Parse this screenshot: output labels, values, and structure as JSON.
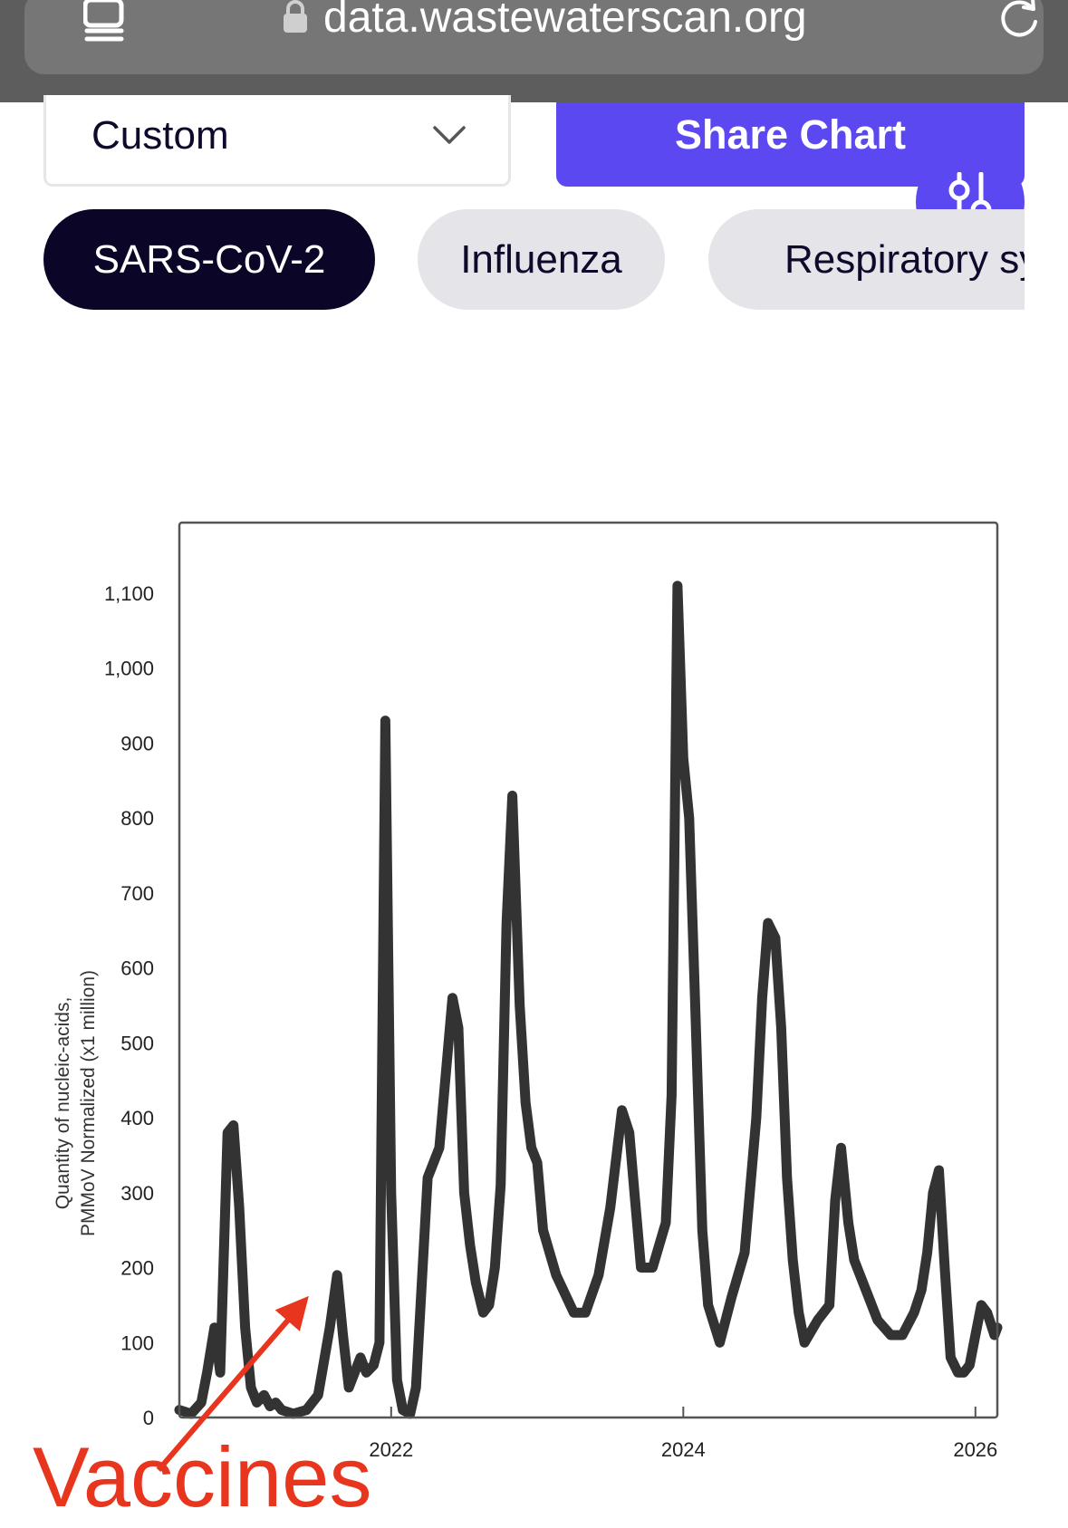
{
  "browser": {
    "url": "data.wastewaterscan.org"
  },
  "controls": {
    "range_value": "Custom",
    "share_label": "Share Chart"
  },
  "pathogen_tabs": [
    {
      "label": "SARS-CoV-2",
      "active": true
    },
    {
      "label": "Influenza",
      "active": false
    },
    {
      "label": "Respiratory sy",
      "active": false
    }
  ],
  "colors": {
    "accent": "#5c48f0",
    "active_chip": "#0b0627",
    "chip": "#e4e4e9",
    "line": "#333333",
    "annotation": "#e8351e"
  },
  "chart_data": {
    "type": "line",
    "ylabel_line1": "Quantity of nucleic-acids,",
    "ylabel_line2": "PMMoV Normalized (x1 million)",
    "ylim": [
      0,
      1200
    ],
    "xlim": [
      2020.55,
      2026.15
    ],
    "y_ticks": [
      {
        "v": 0,
        "label": "0"
      },
      {
        "v": 100,
        "label": "100"
      },
      {
        "v": 200,
        "label": "200"
      },
      {
        "v": 300,
        "label": "300"
      },
      {
        "v": 400,
        "label": "400"
      },
      {
        "v": 500,
        "label": "500"
      },
      {
        "v": 600,
        "label": "600"
      },
      {
        "v": 700,
        "label": "700"
      },
      {
        "v": 800,
        "label": "800"
      },
      {
        "v": 900,
        "label": "900"
      },
      {
        "v": 1000,
        "label": "1,000"
      },
      {
        "v": 1100,
        "label": "1,100"
      }
    ],
    "x_ticks": [
      {
        "v": 2022,
        "label": "2022"
      },
      {
        "v": 2024,
        "label": "2024"
      },
      {
        "v": 2026,
        "label": "2026"
      }
    ],
    "grid": false,
    "series": [
      {
        "x": [
          2020.55,
          2020.63,
          2020.7,
          2020.74,
          2020.79,
          2020.83,
          2020.88,
          2020.92,
          2020.96,
          2021.0,
          2021.04,
          2021.08,
          2021.13,
          2021.17,
          2021.21,
          2021.25,
          2021.33,
          2021.42,
          2021.5,
          2021.58,
          2021.63,
          2021.67,
          2021.71,
          2021.75,
          2021.79,
          2021.83,
          2021.88,
          2021.92,
          2021.96,
          2022.0,
          2022.04,
          2022.08,
          2022.13,
          2022.17,
          2022.25,
          2022.33,
          2022.42,
          2022.46,
          2022.5,
          2022.54,
          2022.58,
          2022.63,
          2022.67,
          2022.71,
          2022.75,
          2022.79,
          2022.83,
          2022.88,
          2022.92,
          2022.96,
          2023.0,
          2023.04,
          2023.13,
          2023.25,
          2023.33,
          2023.42,
          2023.5,
          2023.58,
          2023.63,
          2023.67,
          2023.71,
          2023.79,
          2023.88,
          2023.92,
          2023.96,
          2024.0,
          2024.04,
          2024.08,
          2024.13,
          2024.17,
          2024.25,
          2024.33,
          2024.42,
          2024.5,
          2024.54,
          2024.58,
          2024.63,
          2024.67,
          2024.71,
          2024.75,
          2024.79,
          2024.83,
          2024.92,
          2025.0,
          2025.04,
          2025.08,
          2025.13,
          2025.17,
          2025.25,
          2025.33,
          2025.42,
          2025.5,
          2025.58,
          2025.63,
          2025.67,
          2025.71,
          2025.75,
          2025.79,
          2025.83,
          2025.88,
          2025.92,
          2025.96,
          2026.0,
          2026.04,
          2026.08,
          2026.13,
          2026.15
        ],
        "y": [
          10,
          5,
          20,
          60,
          120,
          60,
          380,
          390,
          280,
          120,
          40,
          20,
          30,
          15,
          20,
          10,
          5,
          10,
          30,
          120,
          190,
          110,
          40,
          60,
          80,
          60,
          70,
          100,
          930,
          300,
          50,
          10,
          5,
          40,
          320,
          360,
          560,
          520,
          300,
          230,
          180,
          140,
          150,
          200,
          310,
          660,
          830,
          550,
          420,
          360,
          340,
          250,
          190,
          140,
          140,
          190,
          280,
          410,
          380,
          290,
          200,
          200,
          260,
          430,
          1110,
          880,
          800,
          560,
          250,
          150,
          100,
          160,
          220,
          400,
          560,
          660,
          640,
          520,
          320,
          210,
          140,
          100,
          130,
          150,
          290,
          360,
          260,
          210,
          170,
          130,
          110,
          110,
          140,
          170,
          220,
          300,
          330,
          200,
          80,
          60,
          60,
          70,
          110,
          150,
          140,
          110,
          120
        ]
      }
    ],
    "annotation": "Vaccines"
  }
}
